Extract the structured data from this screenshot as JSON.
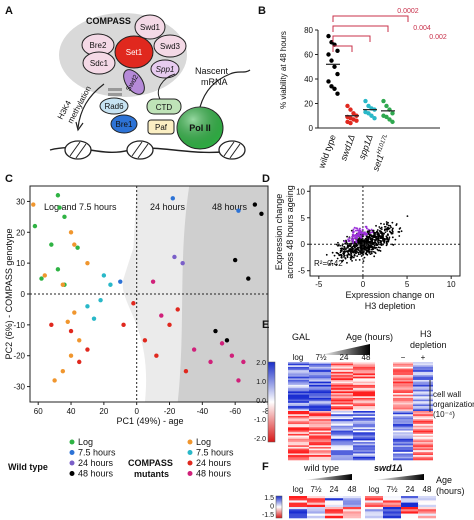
{
  "panels": {
    "a": "A",
    "b": "B",
    "c": "C",
    "d": "D",
    "e": "E",
    "f": "F"
  },
  "panel_a": {
    "compass": "COMPASS",
    "proteins": [
      "Swd1",
      "Bre2",
      "Set1",
      "Swd3",
      "Sdc1",
      "Swd2",
      "Spp1"
    ],
    "h3k4_l1": "H3K4",
    "h3k4_l2": "methylation",
    "rad6": "Rad6",
    "bre1": "Bre1",
    "paf": "Paf",
    "ctd": "CTD",
    "pol2": "Pol II",
    "nascent_l1": "Nascent",
    "nascent_l2": "mRNA"
  },
  "panel_b": {
    "ylabel": "% viability at 48 hours",
    "pvalues": [
      "0.0002",
      "0.004",
      "0.002"
    ]
  },
  "chart_b": {
    "type": "scatter",
    "categories": [
      "wild type",
      "swd1Δ",
      "spp1Δ",
      "set1"
    ],
    "set1_sup": "H1017L",
    "ylim": [
      0,
      80
    ],
    "yticks": [
      0,
      20,
      40,
      60,
      80
    ],
    "colors": [
      "#000000",
      "#e0281e",
      "#29b8c8",
      "#2fa84f"
    ],
    "points": [
      [
        75,
        70,
        68,
        63,
        60,
        55,
        50,
        44,
        38,
        34,
        32,
        28
      ],
      [
        18,
        15,
        12,
        10,
        9,
        8,
        7,
        6,
        5,
        4
      ],
      [
        22,
        18,
        16,
        15,
        13,
        12,
        10,
        8
      ],
      [
        22,
        18,
        15,
        12,
        10,
        9,
        7,
        5
      ]
    ],
    "means": [
      52,
      10,
      15,
      14
    ]
  },
  "chart_c": {
    "type": "scatter",
    "xlabel": "PC1 (49%) - age",
    "ylabel": "PC2 (6%) - COMPASS genotype",
    "xlim": [
      65,
      -80
    ],
    "ylim": [
      -35,
      35
    ],
    "xticks": [
      60,
      40,
      20,
      0,
      -20,
      -40,
      -60,
      -80
    ],
    "yticks": [
      30,
      20,
      10,
      0,
      -10,
      -20,
      -30
    ],
    "regions": [
      "Log and 7.5 hours",
      "24 hours",
      "48 hours"
    ],
    "series": [
      {
        "color": "#2fb344",
        "points": [
          [
            48,
            32
          ],
          [
            47,
            28
          ],
          [
            44,
            25
          ],
          [
            62,
            22
          ],
          [
            52,
            16
          ],
          [
            36,
            15
          ],
          [
            48,
            8
          ],
          [
            58,
            5
          ],
          [
            44,
            3
          ]
        ]
      },
      {
        "color": "#2d73d6",
        "points": [
          [
            10,
            4
          ],
          [
            -22,
            31
          ],
          [
            -62,
            27
          ]
        ]
      },
      {
        "color": "#7a5fc8",
        "points": [
          [
            -23,
            12
          ],
          [
            -28,
            10
          ]
        ]
      },
      {
        "color": "#000000",
        "points": [
          [
            -72,
            29
          ],
          [
            -76,
            26
          ],
          [
            -60,
            11
          ],
          [
            -68,
            5
          ],
          [
            -55,
            -15
          ],
          [
            -48,
            -12
          ]
        ]
      },
      {
        "color": "#f0962e",
        "points": [
          [
            63,
            29
          ],
          [
            40,
            20
          ],
          [
            38,
            16
          ],
          [
            30,
            10
          ],
          [
            56,
            6
          ],
          [
            45,
            3
          ],
          [
            38,
            -6
          ],
          [
            42,
            -9
          ],
          [
            35,
            -15
          ],
          [
            40,
            -20
          ],
          [
            45,
            -25
          ],
          [
            50,
            -28
          ]
        ]
      },
      {
        "color": "#29b8c8",
        "points": [
          [
            20,
            6
          ],
          [
            16,
            3
          ],
          [
            30,
            -4
          ],
          [
            26,
            -8
          ],
          [
            22,
            -2
          ]
        ]
      },
      {
        "color": "#e0281e",
        "points": [
          [
            52,
            -10
          ],
          [
            40,
            -12
          ],
          [
            35,
            -22
          ],
          [
            30,
            -18
          ],
          [
            2,
            -3
          ],
          [
            8,
            -10
          ],
          [
            -5,
            -15
          ],
          [
            -12,
            -20
          ],
          [
            -25,
            -5
          ],
          [
            -30,
            -25
          ],
          [
            -20,
            -10
          ]
        ]
      },
      {
        "color": "#d0207a",
        "points": [
          [
            -10,
            4
          ],
          [
            -15,
            -7
          ],
          [
            -35,
            -18
          ],
          [
            -45,
            -22
          ],
          [
            -58,
            -20
          ],
          [
            -65,
            -22
          ],
          [
            -62,
            -28
          ],
          [
            -52,
            -16
          ]
        ]
      }
    ]
  },
  "legend_c": {
    "wt": "Wild type",
    "mut_l1": "COMPASS",
    "mut_l2": "mutants",
    "wt_items": [
      [
        "Log",
        "#2fb344"
      ],
      [
        "7.5 hours",
        "#2d73d6"
      ],
      [
        "24 hours",
        "#7a5fc8"
      ],
      [
        "48 hours",
        "#000000"
      ]
    ],
    "mut_items": [
      [
        "Log",
        "#f0962e"
      ],
      [
        "7.5 hours",
        "#29b8c8"
      ],
      [
        "24 hours",
        "#e0281e"
      ],
      [
        "48 hours",
        "#d0207a"
      ]
    ]
  },
  "chart_d": {
    "type": "scatter",
    "ylabel_l1": "Expression change",
    "ylabel_l2": "across 48 hours ageing",
    "xlabel_l1": "Expression change on",
    "xlabel_l2": "H3 depletion",
    "xticks": [
      -5,
      0,
      5,
      10
    ],
    "yticks": [
      -5,
      0,
      5,
      10
    ],
    "xlim": [
      -6,
      11
    ],
    "ylim": [
      -6,
      11
    ],
    "r2": "R²=0.42",
    "colors": [
      "#000000",
      "#9b30d9"
    ]
  },
  "panel_e": {
    "gal": "GAL",
    "age": "Age (hours)",
    "h3_l1": "H3",
    "h3_l2": "depletion",
    "cols": [
      "log",
      "7½",
      "24",
      "48",
      "−",
      "+"
    ],
    "scale": [
      "2.0",
      "1.0",
      "0.0",
      "-1.0",
      "-2.0"
    ],
    "annot_l1": "cell wall",
    "annot_l2": "organization",
    "annot_l3": "(10⁻⁴)"
  },
  "panel_f": {
    "wt": "wild type",
    "mut": "swd1Δ",
    "age_l1": "Age",
    "age_l2": "(hours)",
    "cols": [
      "log",
      "7½",
      "24",
      "48",
      "log",
      "7½",
      "24",
      "48"
    ],
    "scale": [
      "1.5",
      "0",
      "-1.5"
    ]
  }
}
